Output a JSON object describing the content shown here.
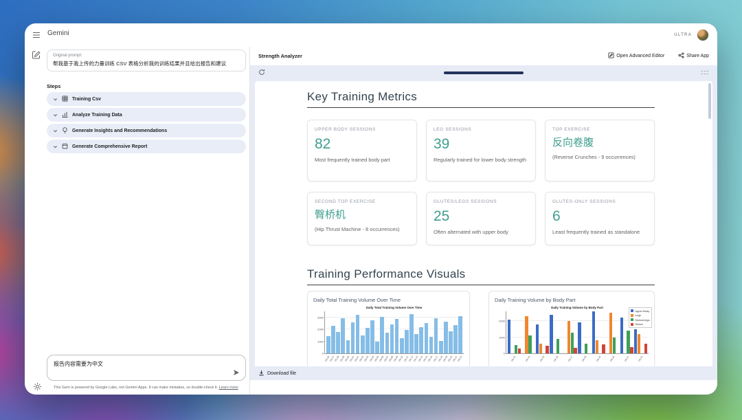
{
  "app": {
    "title": "Gemini",
    "plan_badge": "ULTRA"
  },
  "left_panel": {
    "original_prompt_label": "Original prompt:",
    "original_prompt_text": "帮我基于我上传的力量训练 CSV 表格分析我的训练结果并且给出报告和建议",
    "steps_label": "Steps",
    "steps": [
      {
        "label": "Training Csv",
        "icon": "table-icon"
      },
      {
        "label": "Analyze Training Data",
        "icon": "chart-icon"
      },
      {
        "label": "Generate Insights and Recommendations",
        "icon": "lightbulb-icon"
      },
      {
        "label": "Generate Comprehensive Report",
        "icon": "report-icon"
      }
    ],
    "followup_input_value": "报告内容需要为中文",
    "footer_text": "This Gem is powered by Google Labs, not Gemini Apps. It can make mistakes, so double-check it.",
    "footer_link_text": "Learn more"
  },
  "preview": {
    "app_name": "Strength Analyzer",
    "open_advanced_editor_label": "Open Advanced Editor",
    "share_app_label": "Share App",
    "download_file_label": "Download file"
  },
  "report": {
    "metrics_title": "Key Training Metrics",
    "visuals_title": "Training Performance Visuals",
    "metrics": [
      {
        "label": "UPPER BODY SESSIONS",
        "value": "82",
        "desc": "Most frequently trained body part"
      },
      {
        "label": "LEG SESSIONS",
        "value": "39",
        "desc": "Regularly trained for lower body strength"
      },
      {
        "label": "TOP EXERCISE",
        "value": "反向卷腹",
        "desc": "(Reverse Crunches - 9 occurrences)"
      },
      {
        "label": "SECOND TOP EXERCISE",
        "value": "臀桥机",
        "desc": "(Hip Thrust Machine - 8 occurrences)"
      },
      {
        "label": "GLUTES/LEGS SESSIONS",
        "value": "25",
        "desc": "Often alternated with upper body"
      },
      {
        "label": "GLUTES-ONLY SESSIONS",
        "value": "6",
        "desc": "Least frequently trained as standalone"
      }
    ]
  },
  "colors": {
    "metric_accent": "#3f9d8e",
    "panel_bg": "#e7ebf6",
    "step_row_bg": "#e8edf7",
    "scroll_pill": "#22335c"
  },
  "chart_data": [
    {
      "type": "bar",
      "title": "Daily Total Training Volume Over Time",
      "bar_color": "#85bde7",
      "ylim": [
        0,
        3500
      ],
      "yticks": [
        0,
        1000,
        2000,
        3000
      ],
      "x": [
        "05-26",
        "05-27",
        "05-28",
        "05-29",
        "05-30",
        "05-31",
        "06-01",
        "06-02",
        "06-03",
        "06-04",
        "06-05",
        "06-06",
        "06-07",
        "06-08",
        "06-09",
        "06-10",
        "06-11",
        "06-12",
        "06-13",
        "06-14",
        "06-15",
        "06-16",
        "06-17",
        "06-18",
        "06-19",
        "06-20",
        "06-21",
        "06-22"
      ],
      "values": [
        1450,
        2300,
        1800,
        2950,
        1100,
        2600,
        3200,
        1500,
        2100,
        2750,
        950,
        3050,
        1700,
        2400,
        2850,
        1250,
        1950,
        3300,
        1600,
        2200,
        2500,
        1350,
        2900,
        1050,
        2650,
        1850,
        2350,
        3100
      ]
    },
    {
      "type": "grouped-bar",
      "title": "Daily Training Volume by Body Part",
      "ylim": [
        0,
        2600
      ],
      "yticks": [
        0,
        1000,
        2000
      ],
      "x": [
        "06-13",
        "06-14",
        "06-15",
        "06-16",
        "06-17",
        "06-18",
        "06-19",
        "06-20",
        "06-21",
        "06-22"
      ],
      "series": [
        {
          "name": "Upper Body",
          "color": "#3b6cc5",
          "values": [
            2100,
            0,
            1800,
            2400,
            0,
            1900,
            2600,
            0,
            2200,
            1500
          ]
        },
        {
          "name": "Legs",
          "color": "#f0872e",
          "values": [
            0,
            2300,
            600,
            0,
            2000,
            0,
            800,
            2500,
            0,
            1200
          ]
        },
        {
          "name": "Glutes/Legs",
          "color": "#3fa05a",
          "values": [
            500,
            1100,
            0,
            900,
            1300,
            600,
            0,
            1000,
            1400,
            0
          ]
        },
        {
          "name": "Glutes",
          "color": "#d0453a",
          "values": [
            300,
            0,
            450,
            0,
            350,
            0,
            550,
            0,
            400,
            600
          ]
        }
      ]
    }
  ]
}
